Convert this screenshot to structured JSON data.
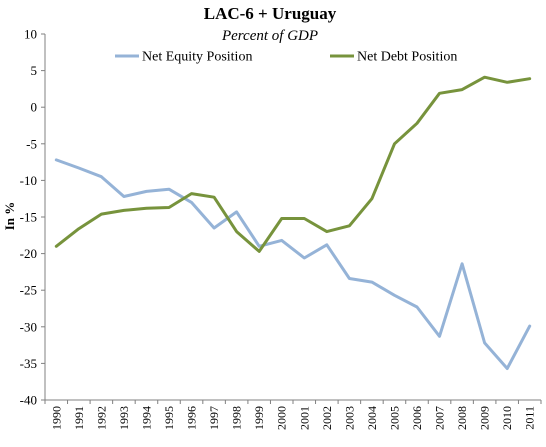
{
  "chart_data": {
    "type": "line",
    "title": "LAC-6 + Uruguay",
    "subtitle": "Percent of  GDP",
    "xlabel": "",
    "ylabel": "In %",
    "categories": [
      "1990",
      "1991",
      "1992",
      "1993",
      "1994",
      "1995",
      "1996",
      "1997",
      "1998",
      "1999",
      "2000",
      "2001",
      "2002",
      "2003",
      "2004",
      "2005",
      "2006",
      "2007",
      "2008",
      "2009",
      "2010",
      "2011"
    ],
    "ylim": [
      -40,
      10
    ],
    "yticks": [
      10,
      5,
      0,
      -5,
      -10,
      -15,
      -20,
      -25,
      -30,
      -35,
      -40
    ],
    "grid": false,
    "legend_position": "top",
    "series": [
      {
        "name": "Net Equity Position",
        "color": "#95b3d7",
        "values": [
          -7.2,
          -8.3,
          -9.5,
          -12.2,
          -11.5,
          -11.2,
          -13.0,
          -16.5,
          -14.3,
          -19.0,
          -18.2,
          -20.6,
          -18.8,
          -23.4,
          -23.9,
          -25.7,
          -27.3,
          -31.3,
          -21.4,
          -32.2,
          -35.7,
          -29.9
        ]
      },
      {
        "name": "Net Debt Position",
        "color": "#77933c",
        "values": [
          -19.0,
          -16.6,
          -14.6,
          -14.1,
          -13.8,
          -13.7,
          -11.8,
          -12.3,
          -17.0,
          -19.7,
          -15.2,
          -15.2,
          -17.0,
          -16.2,
          -12.5,
          -5.0,
          -2.2,
          1.9,
          2.4,
          4.1,
          3.4,
          3.9
        ]
      }
    ]
  }
}
